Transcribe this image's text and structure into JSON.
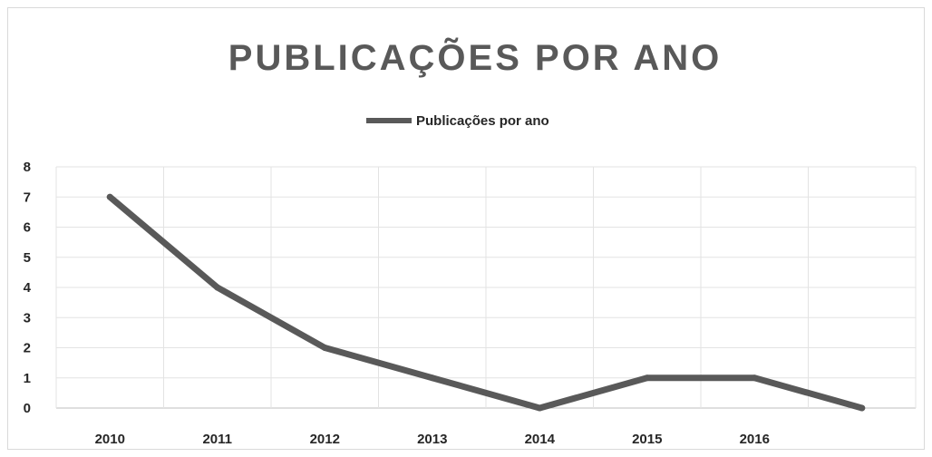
{
  "chart_data": {
    "type": "line",
    "title": "PUBLICAÇÕES POR ANO",
    "xlabel": "",
    "ylabel": "",
    "categories": [
      "2010",
      "2011",
      "2012",
      "2013",
      "2014",
      "2015",
      "2016",
      ""
    ],
    "series": [
      {
        "name": "Publicações por ano",
        "values": [
          7,
          4,
          2,
          1,
          0,
          1,
          1,
          0
        ],
        "color": "#595959"
      }
    ],
    "ylim": [
      0,
      8
    ],
    "yticks": [
      0,
      1,
      2,
      3,
      4,
      5,
      6,
      7,
      8
    ],
    "grid": true,
    "legend_position": "top"
  }
}
